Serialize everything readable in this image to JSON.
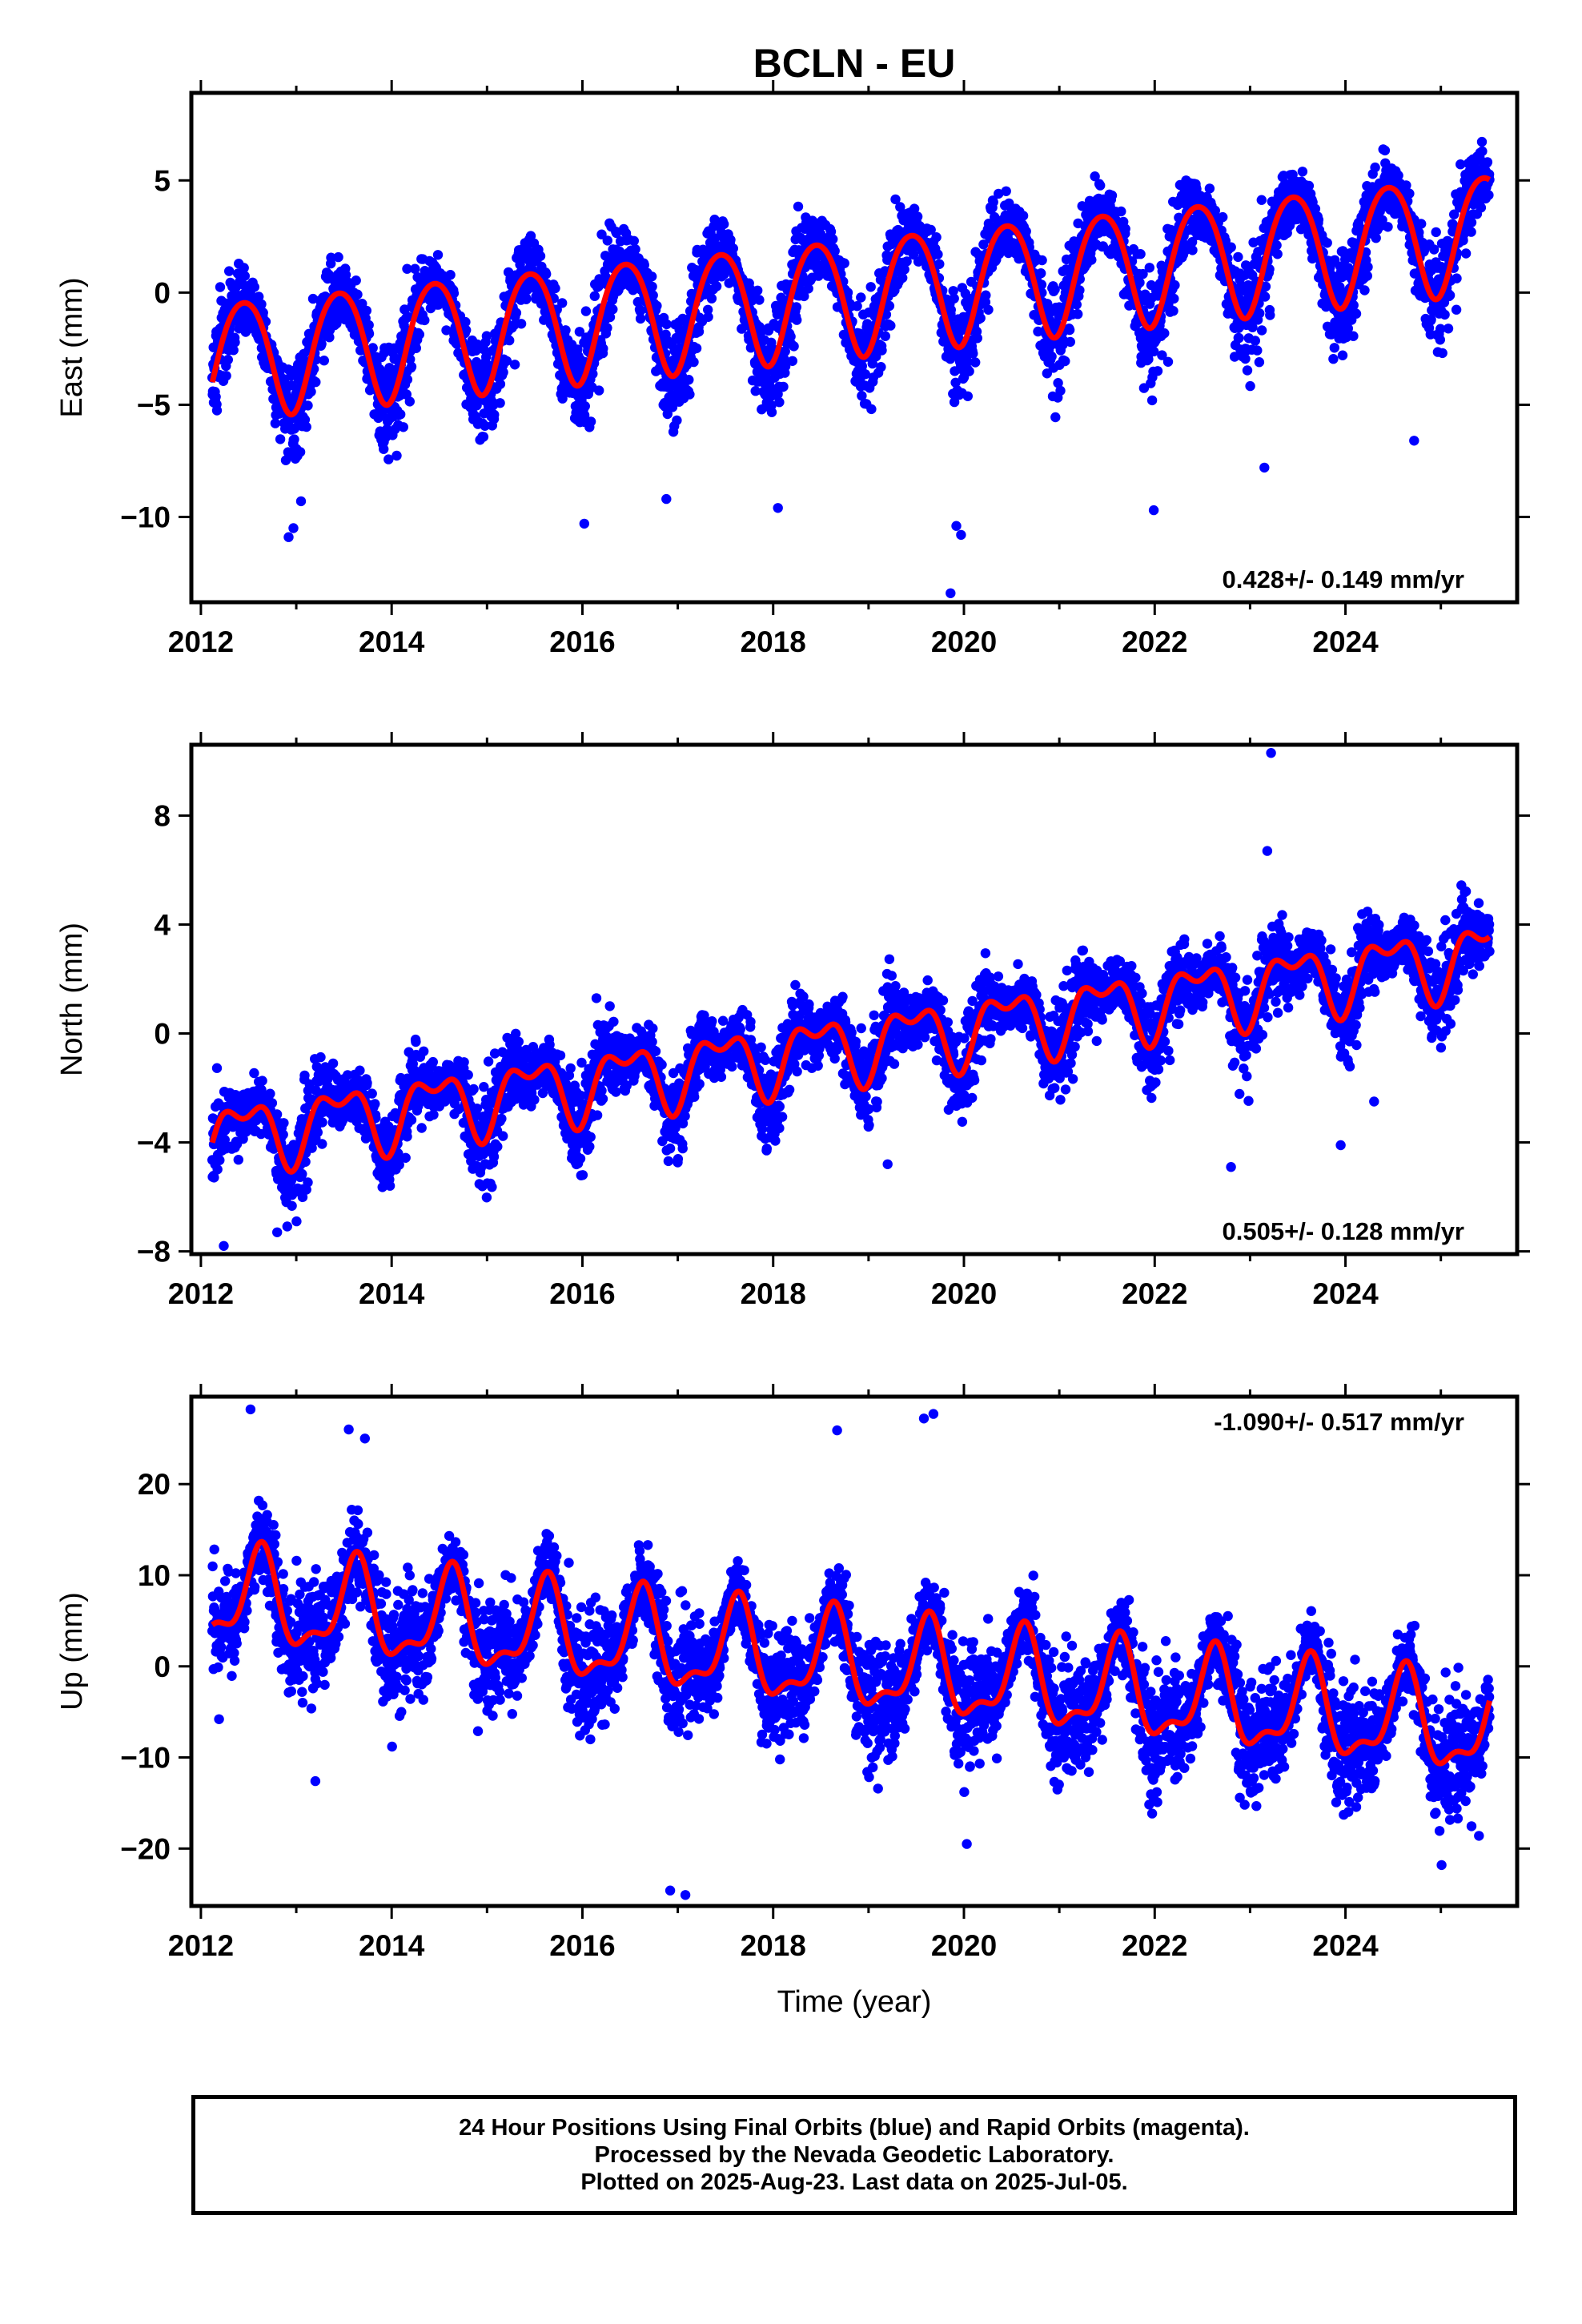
{
  "title": "BCLN - EU",
  "footer": {
    "line1": "24 Hour Positions Using Final Orbits (blue) and Rapid Orbits (magenta).",
    "line2": "Processed by the Nevada Geodetic Laboratory.",
    "line3": "Plotted on 2025-Aug-23. Last data on 2025-Jul-05."
  },
  "colors": {
    "points": "#0000ff",
    "fit": "#ff0000",
    "axis": "#000000"
  },
  "chart_data": [
    {
      "type": "scatter",
      "ylabel": "East (mm)",
      "xlabel": "",
      "xlim": [
        2011.9,
        2025.8
      ],
      "ylim": [
        -13.8,
        8.9
      ],
      "xticks": [
        2012,
        2014,
        2016,
        2018,
        2020,
        2022,
        2024
      ],
      "yticks": [
        5,
        0,
        -5,
        -10
      ],
      "rate_text": "0.428+/- 0.149 mm/yr",
      "rate_pos": "bottom-right",
      "data_range": [
        2012.12,
        2025.51
      ],
      "model": {
        "offset": -2.9,
        "trend": 0.428,
        "annual_amp": 2.6,
        "annual_peak": 0.45,
        "semi_amp": 0.3,
        "semi_peak": 0.2,
        "noise": 1.3
      },
      "outliers": [
        [
          2012.92,
          -10.9
        ],
        [
          2012.97,
          -10.5
        ],
        [
          2013.05,
          -9.3
        ],
        [
          2016.02,
          -10.3
        ],
        [
          2016.88,
          -9.2
        ],
        [
          2018.05,
          -9.6
        ],
        [
          2019.86,
          -13.4
        ],
        [
          2019.92,
          -10.4
        ],
        [
          2019.97,
          -10.8
        ],
        [
          2021.99,
          -9.7
        ],
        [
          2023.15,
          -7.8
        ],
        [
          2024.72,
          -6.6
        ]
      ]
    },
    {
      "type": "scatter",
      "ylabel": "North (mm)",
      "xlabel": "",
      "xlim": [
        2011.9,
        2025.8
      ],
      "ylim": [
        -8.1,
        10.6
      ],
      "xticks": [
        2012,
        2014,
        2016,
        2018,
        2020,
        2022,
        2024
      ],
      "yticks": [
        8,
        4,
        0,
        -4,
        -8
      ],
      "rate_text": "0.505+/- 0.128 mm/yr",
      "rate_pos": "bottom-right",
      "data_range": [
        2012.12,
        2025.51
      ],
      "model": {
        "offset": -3.8,
        "trend": 0.505,
        "annual_amp": 1.1,
        "annual_peak": 0.45,
        "semi_amp": 0.6,
        "semi_peak": 0.2,
        "noise": 0.95
      },
      "outliers": [
        [
          2023.22,
          10.3
        ],
        [
          2023.18,
          6.7
        ],
        [
          2023.95,
          -4.1
        ],
        [
          2024.3,
          -2.5
        ],
        [
          2012.24,
          -7.8
        ],
        [
          2012.8,
          -7.3
        ],
        [
          2019.2,
          -4.8
        ],
        [
          2022.8,
          -4.9
        ]
      ]
    },
    {
      "type": "scatter",
      "ylabel": "Up (mm)",
      "xlabel": "Time (year)",
      "xlim": [
        2011.9,
        2025.8
      ],
      "ylim": [
        -26.3,
        29.6
      ],
      "xticks": [
        2012,
        2014,
        2016,
        2018,
        2020,
        2022,
        2024
      ],
      "yticks": [
        20,
        10,
        0,
        -10,
        -20
      ],
      "rate_text": "-1.090+/- 0.517 mm/yr",
      "rate_pos": "top-right",
      "data_range": [
        2012.12,
        2025.51
      ],
      "model": {
        "offset": 7.5,
        "trend": -1.09,
        "annual_amp": 4.8,
        "annual_peak": 0.62,
        "semi_amp": 2.0,
        "semi_peak": 0.15,
        "noise": 3.8
      },
      "outliers": [
        [
          2012.52,
          28.2
        ],
        [
          2013.55,
          26.0
        ],
        [
          2013.72,
          25.0
        ],
        [
          2016.92,
          -24.6
        ],
        [
          2017.08,
          -25.1
        ],
        [
          2018.67,
          25.9
        ],
        [
          2019.58,
          27.2
        ],
        [
          2019.68,
          27.7
        ],
        [
          2020.03,
          -19.5
        ],
        [
          2013.2,
          -12.6
        ],
        [
          2025.4,
          -18.6
        ]
      ]
    }
  ]
}
